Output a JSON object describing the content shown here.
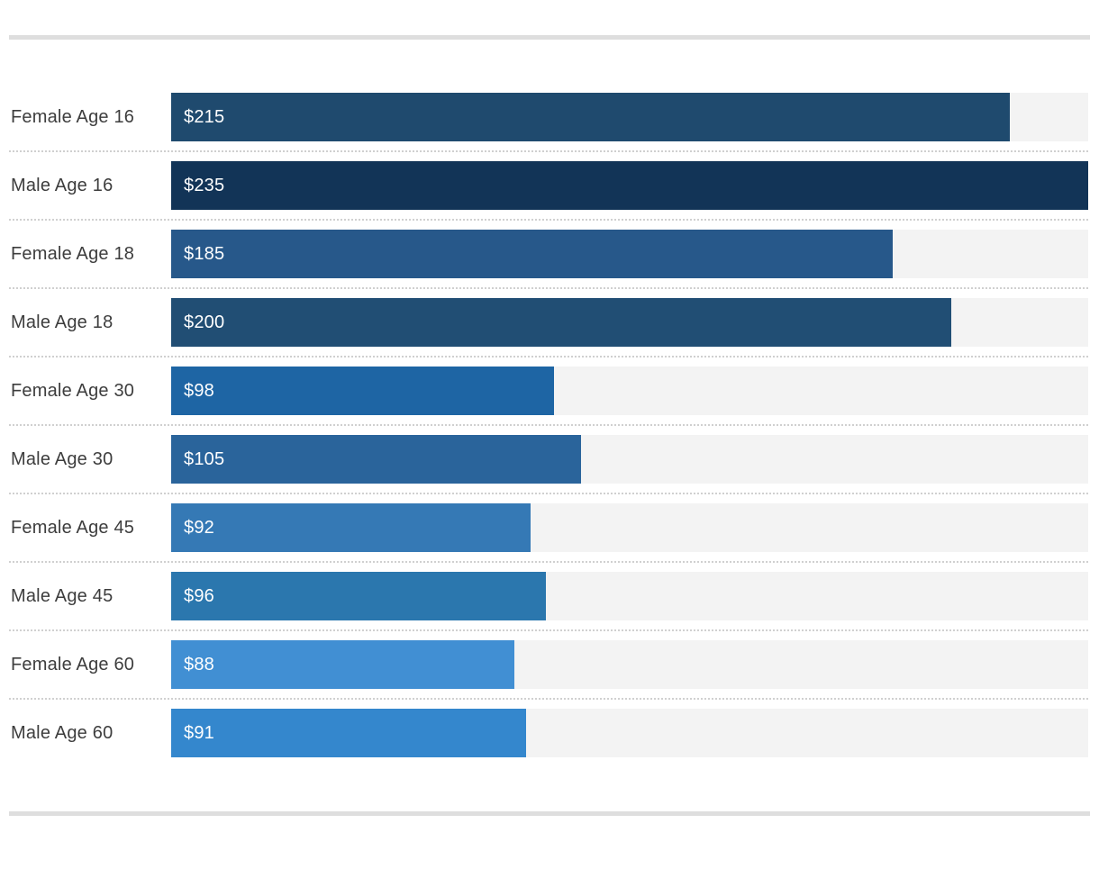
{
  "chart_data": {
    "type": "bar",
    "orientation": "horizontal",
    "title": "",
    "xlabel": "",
    "ylabel": "",
    "xlim": [
      0,
      235
    ],
    "grid": false,
    "legend": false,
    "categories": [
      "Female Age 16",
      "Male Age 16",
      "Female Age 18",
      "Male Age 18",
      "Female Age 30",
      "Male Age 30",
      "Female Age 45",
      "Male Age 45",
      "Female Age 60",
      "Male Age 60"
    ],
    "values": [
      215,
      235,
      185,
      200,
      98,
      105,
      92,
      96,
      88,
      91
    ],
    "data_labels": [
      "$215",
      "$235",
      "$185",
      "$200",
      "$98",
      "$105",
      "$92",
      "$96",
      "$88",
      "$91"
    ],
    "bar_colors": [
      "#1f4a6e",
      "#123457",
      "#27588a",
      "#214e74",
      "#1e65a4",
      "#2a649b",
      "#3579b5",
      "#2b77ae",
      "#418fd3",
      "#3487cd"
    ],
    "track_color": "#f3f3f3"
  },
  "styles": {
    "background": "#ffffff",
    "rule_color": "#dedede",
    "separator_color": "#d0d0d0",
    "label_text_color": "#3d3d3d",
    "value_text_color": "#ffffff"
  }
}
